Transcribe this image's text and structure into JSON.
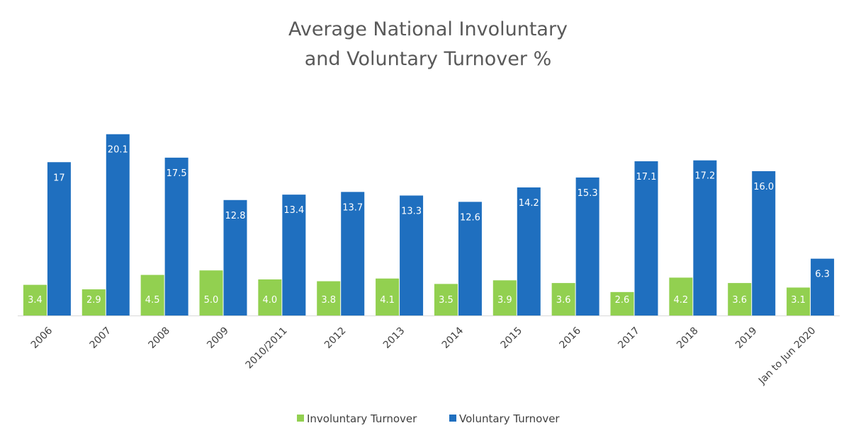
{
  "chart_data": {
    "type": "bar",
    "title": [
      "Average National Involuntary",
      "and Voluntary Turnover %"
    ],
    "xlabel": "",
    "ylabel": "",
    "ylim": [
      0,
      22
    ],
    "grid": false,
    "legend_position": "bottom",
    "categories": [
      "2006",
      "2007",
      "2008",
      "2009",
      "2010/2011",
      "2012",
      "2013",
      "2014",
      "2015",
      "2016",
      "2017",
      "2018",
      "2019",
      "Jan to Jun 2020"
    ],
    "series": [
      {
        "name": "Involuntary Turnover",
        "color": "#92d050",
        "values": [
          3.4,
          2.9,
          4.5,
          5.0,
          4.0,
          3.8,
          4.1,
          3.5,
          3.9,
          3.6,
          2.6,
          4.2,
          3.6,
          3.1
        ],
        "labels": [
          "3.4",
          "2.9",
          "4.5",
          "5.0",
          "4.0",
          "3.8",
          "4.1",
          "3.5",
          "3.9",
          "3.6",
          "2.6",
          "4.2",
          "3.6",
          "3.1"
        ]
      },
      {
        "name": "Voluntary Turnover",
        "color": "#1f6fbf",
        "values": [
          17,
          20.1,
          17.5,
          12.8,
          13.4,
          13.7,
          13.3,
          12.6,
          14.2,
          15.3,
          17.1,
          17.2,
          16.0,
          6.3
        ],
        "labels": [
          "17",
          "20.1",
          "17.5",
          "12.8",
          "13.4",
          "13.7",
          "13.3",
          "12.6",
          "14.2",
          "15.3",
          "17.1",
          "17.2",
          "16.0",
          "6.3"
        ]
      }
    ]
  }
}
